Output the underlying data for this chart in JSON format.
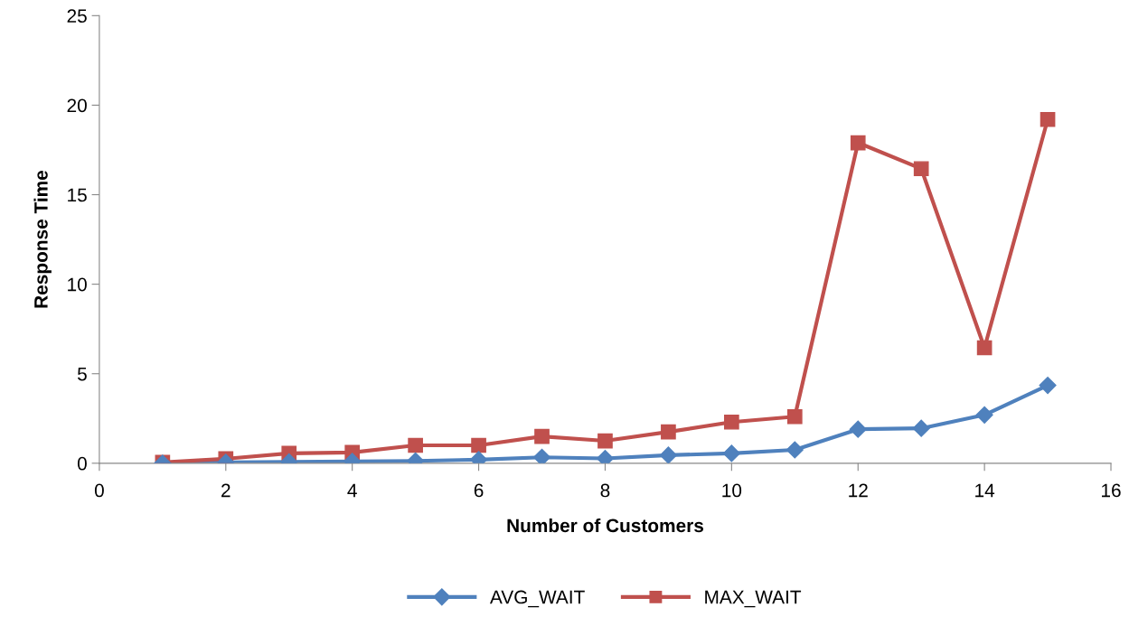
{
  "chart_data": {
    "type": "line",
    "xlabel": "Number of Customers",
    "ylabel": "Response Time",
    "x": [
      1,
      2,
      3,
      4,
      5,
      6,
      7,
      8,
      9,
      10,
      11,
      12,
      13,
      14,
      15
    ],
    "series": [
      {
        "name": "AVG_WAIT",
        "color": "#4f81bd",
        "marker": "diamond",
        "values": [
          0.0,
          0.05,
          0.07,
          0.1,
          0.13,
          0.2,
          0.33,
          0.27,
          0.45,
          0.55,
          0.75,
          1.9,
          1.95,
          2.7,
          4.35
        ]
      },
      {
        "name": "MAX_WAIT",
        "color": "#c0504d",
        "marker": "square",
        "values": [
          0.05,
          0.25,
          0.55,
          0.6,
          1.0,
          1.0,
          1.5,
          1.25,
          1.75,
          2.3,
          2.6,
          17.9,
          16.45,
          6.45,
          19.2
        ]
      }
    ],
    "xlim": [
      0,
      16
    ],
    "xticks": [
      0,
      2,
      4,
      6,
      8,
      10,
      12,
      14,
      16
    ],
    "ylim": [
      0,
      25
    ],
    "yticks": [
      0,
      5,
      10,
      15,
      20,
      25
    ],
    "grid": false,
    "legend": "bottom",
    "line_style": "solid"
  }
}
